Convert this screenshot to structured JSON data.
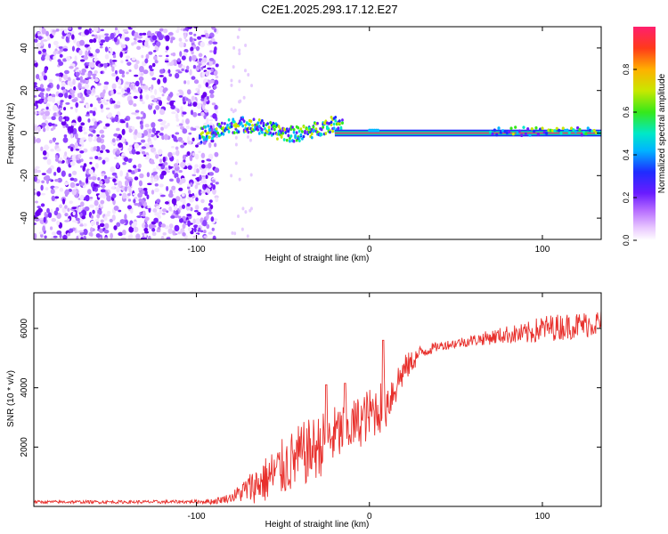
{
  "title": "C2E1.2025.293.17.12.E27",
  "chart_data": [
    {
      "type": "heatmap",
      "name": "spectrogram",
      "xlabel": "Height of straight line (km)",
      "ylabel": "Frequency (Hz)",
      "xlim": [
        -194,
        134
      ],
      "ylim": [
        -50,
        50
      ],
      "xticks": [
        -100,
        0,
        100
      ],
      "xtick_labels": [
        "-100",
        "0",
        "100"
      ],
      "yticks": [
        -40,
        -20,
        0,
        20,
        40
      ],
      "ytick_labels": [
        "-40",
        "-20",
        "0",
        "20",
        "40"
      ],
      "noise_region_x": [
        -194,
        -88
      ],
      "signal_line_freq_hz": 0,
      "colorbar": {
        "label": "Normalized spectral amplitude",
        "range": [
          0,
          1
        ],
        "ticks": [
          0,
          0.2,
          0.4,
          0.6,
          0.8
        ],
        "tick_labels": [
          "0.0",
          "0.2",
          "0.4",
          "0.6",
          "0.8"
        ]
      }
    },
    {
      "type": "line",
      "name": "snr",
      "xlabel": "Height of straight line (km)",
      "ylabel": "SNR (10 * v/v)",
      "xlim": [
        -194,
        134
      ],
      "ylim": [
        0,
        7200
      ],
      "xticks": [
        -100,
        0,
        100
      ],
      "xtick_labels": [
        "-100",
        "0",
        "100"
      ],
      "yticks": [
        2000,
        4000,
        6000
      ],
      "ytick_labels": [
        "2000",
        "4000",
        "6000"
      ],
      "color": "#e8302c",
      "trend": {
        "x": [
          -194,
          -120,
          -90,
          -80,
          -70,
          -60,
          -50,
          -40,
          -30,
          -20,
          -10,
          0,
          10,
          20,
          30,
          40,
          60,
          80,
          90,
          100,
          110,
          120,
          134
        ],
        "y": [
          150,
          150,
          170,
          300,
          600,
          900,
          1300,
          1700,
          2000,
          2400,
          2700,
          3100,
          3500,
          4600,
          5200,
          5400,
          5600,
          5800,
          5800,
          6000,
          6050,
          6100,
          6200
        ]
      },
      "noise": {
        "x": [
          -194,
          -100,
          -80,
          -70,
          -60,
          -50,
          -40,
          -30,
          -20,
          -10,
          0,
          10,
          20,
          30,
          40,
          60,
          80,
          100,
          120,
          134
        ],
        "amp": [
          50,
          60,
          150,
          500,
          800,
          1000,
          1100,
          1100,
          1000,
          900,
          900,
          900,
          500,
          250,
          150,
          200,
          300,
          450,
          450,
          450
        ]
      }
    }
  ]
}
